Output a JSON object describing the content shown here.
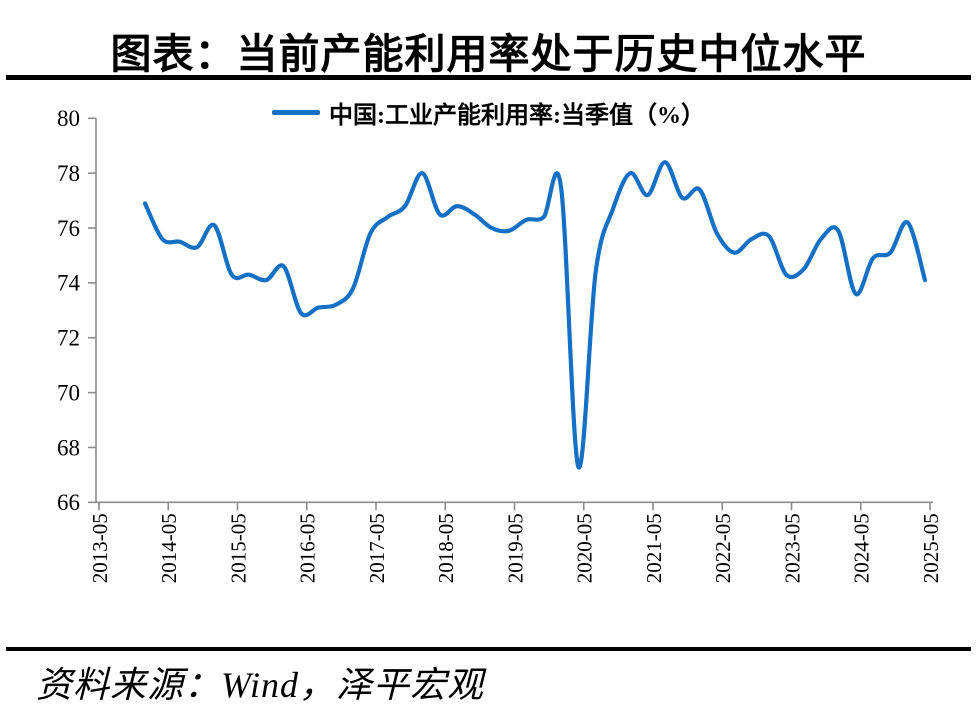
{
  "header": {
    "title": "图表：当前产能利用率处于历史中位水平"
  },
  "legend": {
    "label": "中国:工业产能利用率:当季值（%）"
  },
  "footer": {
    "source": "资料来源：Wind，泽平宏观"
  },
  "colors": {
    "line": "#1470C4",
    "axis": "#8C8C8C",
    "text": "#000000",
    "rule": "#000000",
    "background": "#FFFFFF"
  },
  "chart_data": {
    "type": "line",
    "title": "图表：当前产能利用率处于历史中位水平",
    "legend_entries": [
      "中国:工业产能利用率:当季值（%）"
    ],
    "legend_position": "top",
    "grid": false,
    "ylim": [
      66,
      80
    ],
    "y_ticks": [
      66,
      68,
      70,
      72,
      74,
      76,
      78,
      80
    ],
    "x_tick_labels": [
      "2013-05",
      "2014-05",
      "2015-05",
      "2016-05",
      "2017-05",
      "2018-05",
      "2019-05",
      "2020-05",
      "2021-05",
      "2022-05",
      "2023-05",
      "2024-05",
      "2025-05"
    ],
    "series": [
      {
        "name": "中国:工业产能利用率:当季值（%）",
        "x": [
          "2013Q4",
          "2014Q1",
          "2014Q2",
          "2014Q3",
          "2014Q4",
          "2015Q1",
          "2015Q2",
          "2015Q3",
          "2015Q4",
          "2016Q1",
          "2016Q2",
          "2016Q3",
          "2016Q4",
          "2017Q1",
          "2017Q2",
          "2017Q3",
          "2017Q4",
          "2018Q1",
          "2018Q2",
          "2018Q3",
          "2018Q4",
          "2019Q1",
          "2019Q2",
          "2019Q3",
          "2019Q4",
          "2020Q1",
          "2020Q2",
          "2020Q3",
          "2020Q4",
          "2021Q1",
          "2021Q2",
          "2021Q3",
          "2021Q4",
          "2022Q1",
          "2022Q2",
          "2022Q3",
          "2022Q4",
          "2023Q1",
          "2023Q2",
          "2023Q3",
          "2023Q4",
          "2024Q1",
          "2024Q2",
          "2024Q3",
          "2024Q4",
          "2025Q1"
        ],
        "values": [
          76.9,
          75.6,
          75.5,
          75.3,
          76.1,
          74.3,
          74.3,
          74.1,
          74.6,
          72.9,
          73.1,
          73.2,
          73.8,
          75.8,
          76.4,
          76.8,
          78.0,
          76.5,
          76.8,
          76.5,
          76.0,
          75.9,
          76.3,
          76.4,
          77.5,
          67.3,
          74.4,
          76.7,
          78.0,
          77.2,
          78.4,
          77.1,
          77.4,
          75.8,
          75.1,
          75.6,
          75.7,
          74.3,
          74.5,
          75.6,
          75.9,
          73.6,
          74.9,
          75.1,
          76.2,
          74.1
        ]
      }
    ]
  }
}
